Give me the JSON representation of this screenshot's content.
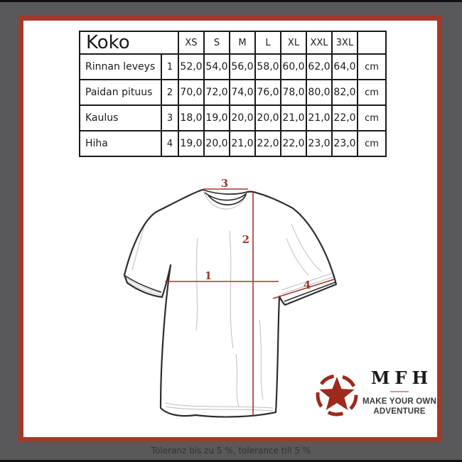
{
  "colors": {
    "page_bg": "#59595b",
    "frame_red": "#a23a2c",
    "measure_red": "#9d3a2f",
    "star_red": "#9d2a1d",
    "table_border": "#1b1b1b"
  },
  "table": {
    "title": "Koko",
    "size_headers": [
      "XS",
      "S",
      "M",
      "L",
      "XL",
      "XXL",
      "3XL"
    ],
    "unit_header": "",
    "rows": [
      {
        "label": "Rinnan leveys",
        "num": "1",
        "values": [
          "52,0",
          "54,0",
          "56,0",
          "58,0",
          "60,0",
          "62,0",
          "64,0"
        ],
        "unit": "cm"
      },
      {
        "label": "Paidan pituus",
        "num": "2",
        "values": [
          "70,0",
          "72,0",
          "74,0",
          "76,0",
          "78,0",
          "80,0",
          "82,0"
        ],
        "unit": "cm"
      },
      {
        "label": "Kaulus",
        "num": "3",
        "values": [
          "18,0",
          "19,0",
          "20,0",
          "20,0",
          "21,0",
          "21,0",
          "22,0"
        ],
        "unit": "cm"
      },
      {
        "label": "Hiha",
        "num": "4",
        "values": [
          "19,0",
          "20,0",
          "21,0",
          "22,0",
          "22,0",
          "23,0",
          "23,0"
        ],
        "unit": "cm"
      }
    ]
  },
  "diagram": {
    "labels": {
      "chest_width": "1",
      "shirt_length": "2",
      "collar": "3",
      "sleeve": "4"
    }
  },
  "logo": {
    "brand": "MFH",
    "tagline_line1": "MAKE YOUR OWN",
    "tagline_line2": "ADVENTURE"
  },
  "footer": {
    "text": "Toleranz bis zu 5 %, tolerance till 5 %"
  }
}
